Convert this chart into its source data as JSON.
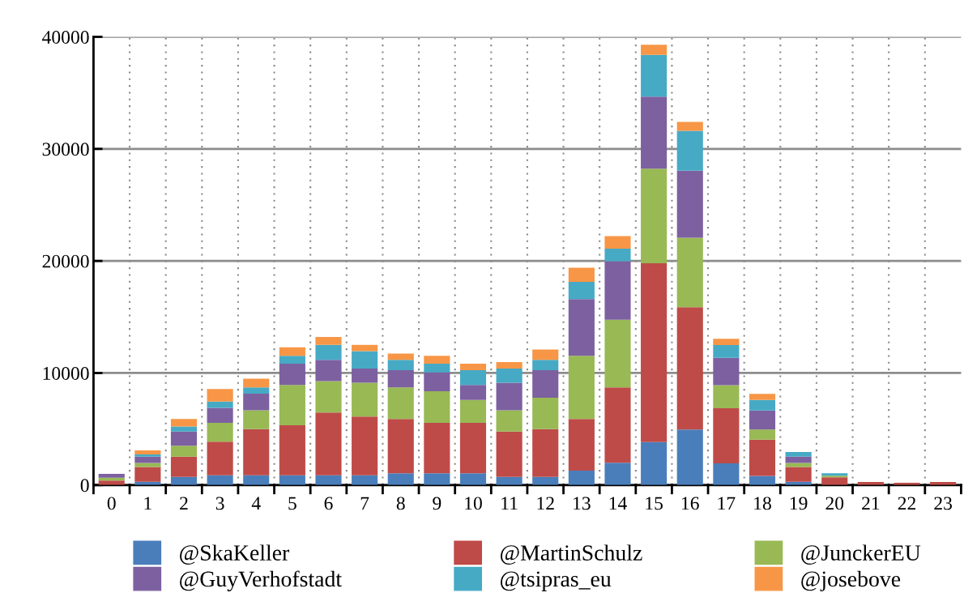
{
  "chart_data": {
    "type": "bar",
    "stacked": true,
    "categories": [
      "0",
      "1",
      "2",
      "3",
      "4",
      "5",
      "6",
      "7",
      "8",
      "9",
      "10",
      "11",
      "12",
      "13",
      "14",
      "15",
      "16",
      "17",
      "18",
      "19",
      "20",
      "21",
      "22",
      "23"
    ],
    "series": [
      {
        "name": "@SkaKeller",
        "color": "#4a7ebb",
        "values": [
          0,
          300,
          720,
          870,
          870,
          870,
          870,
          870,
          1050,
          1050,
          1050,
          720,
          720,
          1290,
          1990,
          3840,
          4960,
          1940,
          820,
          300,
          0,
          0,
          0,
          0
        ]
      },
      {
        "name": "@MartinSchulz",
        "color": "#be4b48",
        "values": [
          400,
          1320,
          1810,
          3000,
          4120,
          4470,
          5600,
          5250,
          4850,
          4500,
          4500,
          4060,
          4270,
          4610,
          6730,
          15960,
          10910,
          4920,
          3230,
          1320,
          700,
          280,
          200,
          280
        ]
      },
      {
        "name": "@JunckerEU",
        "color": "#98b954",
        "values": [
          250,
          350,
          980,
          1680,
          1690,
          3590,
          2810,
          3020,
          2820,
          2820,
          2040,
          1900,
          2810,
          5630,
          6040,
          8430,
          6200,
          2050,
          910,
          350,
          140,
          0,
          0,
          0
        ]
      },
      {
        "name": "@GuyVerhofstadt",
        "color": "#7d60a0",
        "values": [
          350,
          560,
          1270,
          1340,
          1470,
          1900,
          1900,
          1260,
          1540,
          1680,
          1340,
          2460,
          2460,
          5060,
          5210,
          6430,
          5980,
          2450,
          1690,
          560,
          0,
          0,
          0,
          0
        ]
      },
      {
        "name": "@tsipras_eu",
        "color": "#46aac5",
        "values": [
          0,
          210,
          440,
          560,
          570,
          700,
          1330,
          1550,
          920,
          780,
          1330,
          1260,
          920,
          1550,
          1120,
          3730,
          3570,
          1130,
          940,
          420,
          210,
          0,
          0,
          0
        ]
      },
      {
        "name": "@josebove",
        "color": "#f79646",
        "values": [
          0,
          350,
          680,
          1130,
          770,
          770,
          710,
          560,
          560,
          700,
          570,
          570,
          910,
          1260,
          1120,
          910,
          790,
          560,
          540,
          0,
          0,
          0,
          0,
          0
        ]
      }
    ],
    "ylim": [
      0,
      40000
    ],
    "yticks": [
      0,
      10000,
      20000,
      30000,
      40000
    ],
    "grid": true,
    "legend": "bottom"
  }
}
